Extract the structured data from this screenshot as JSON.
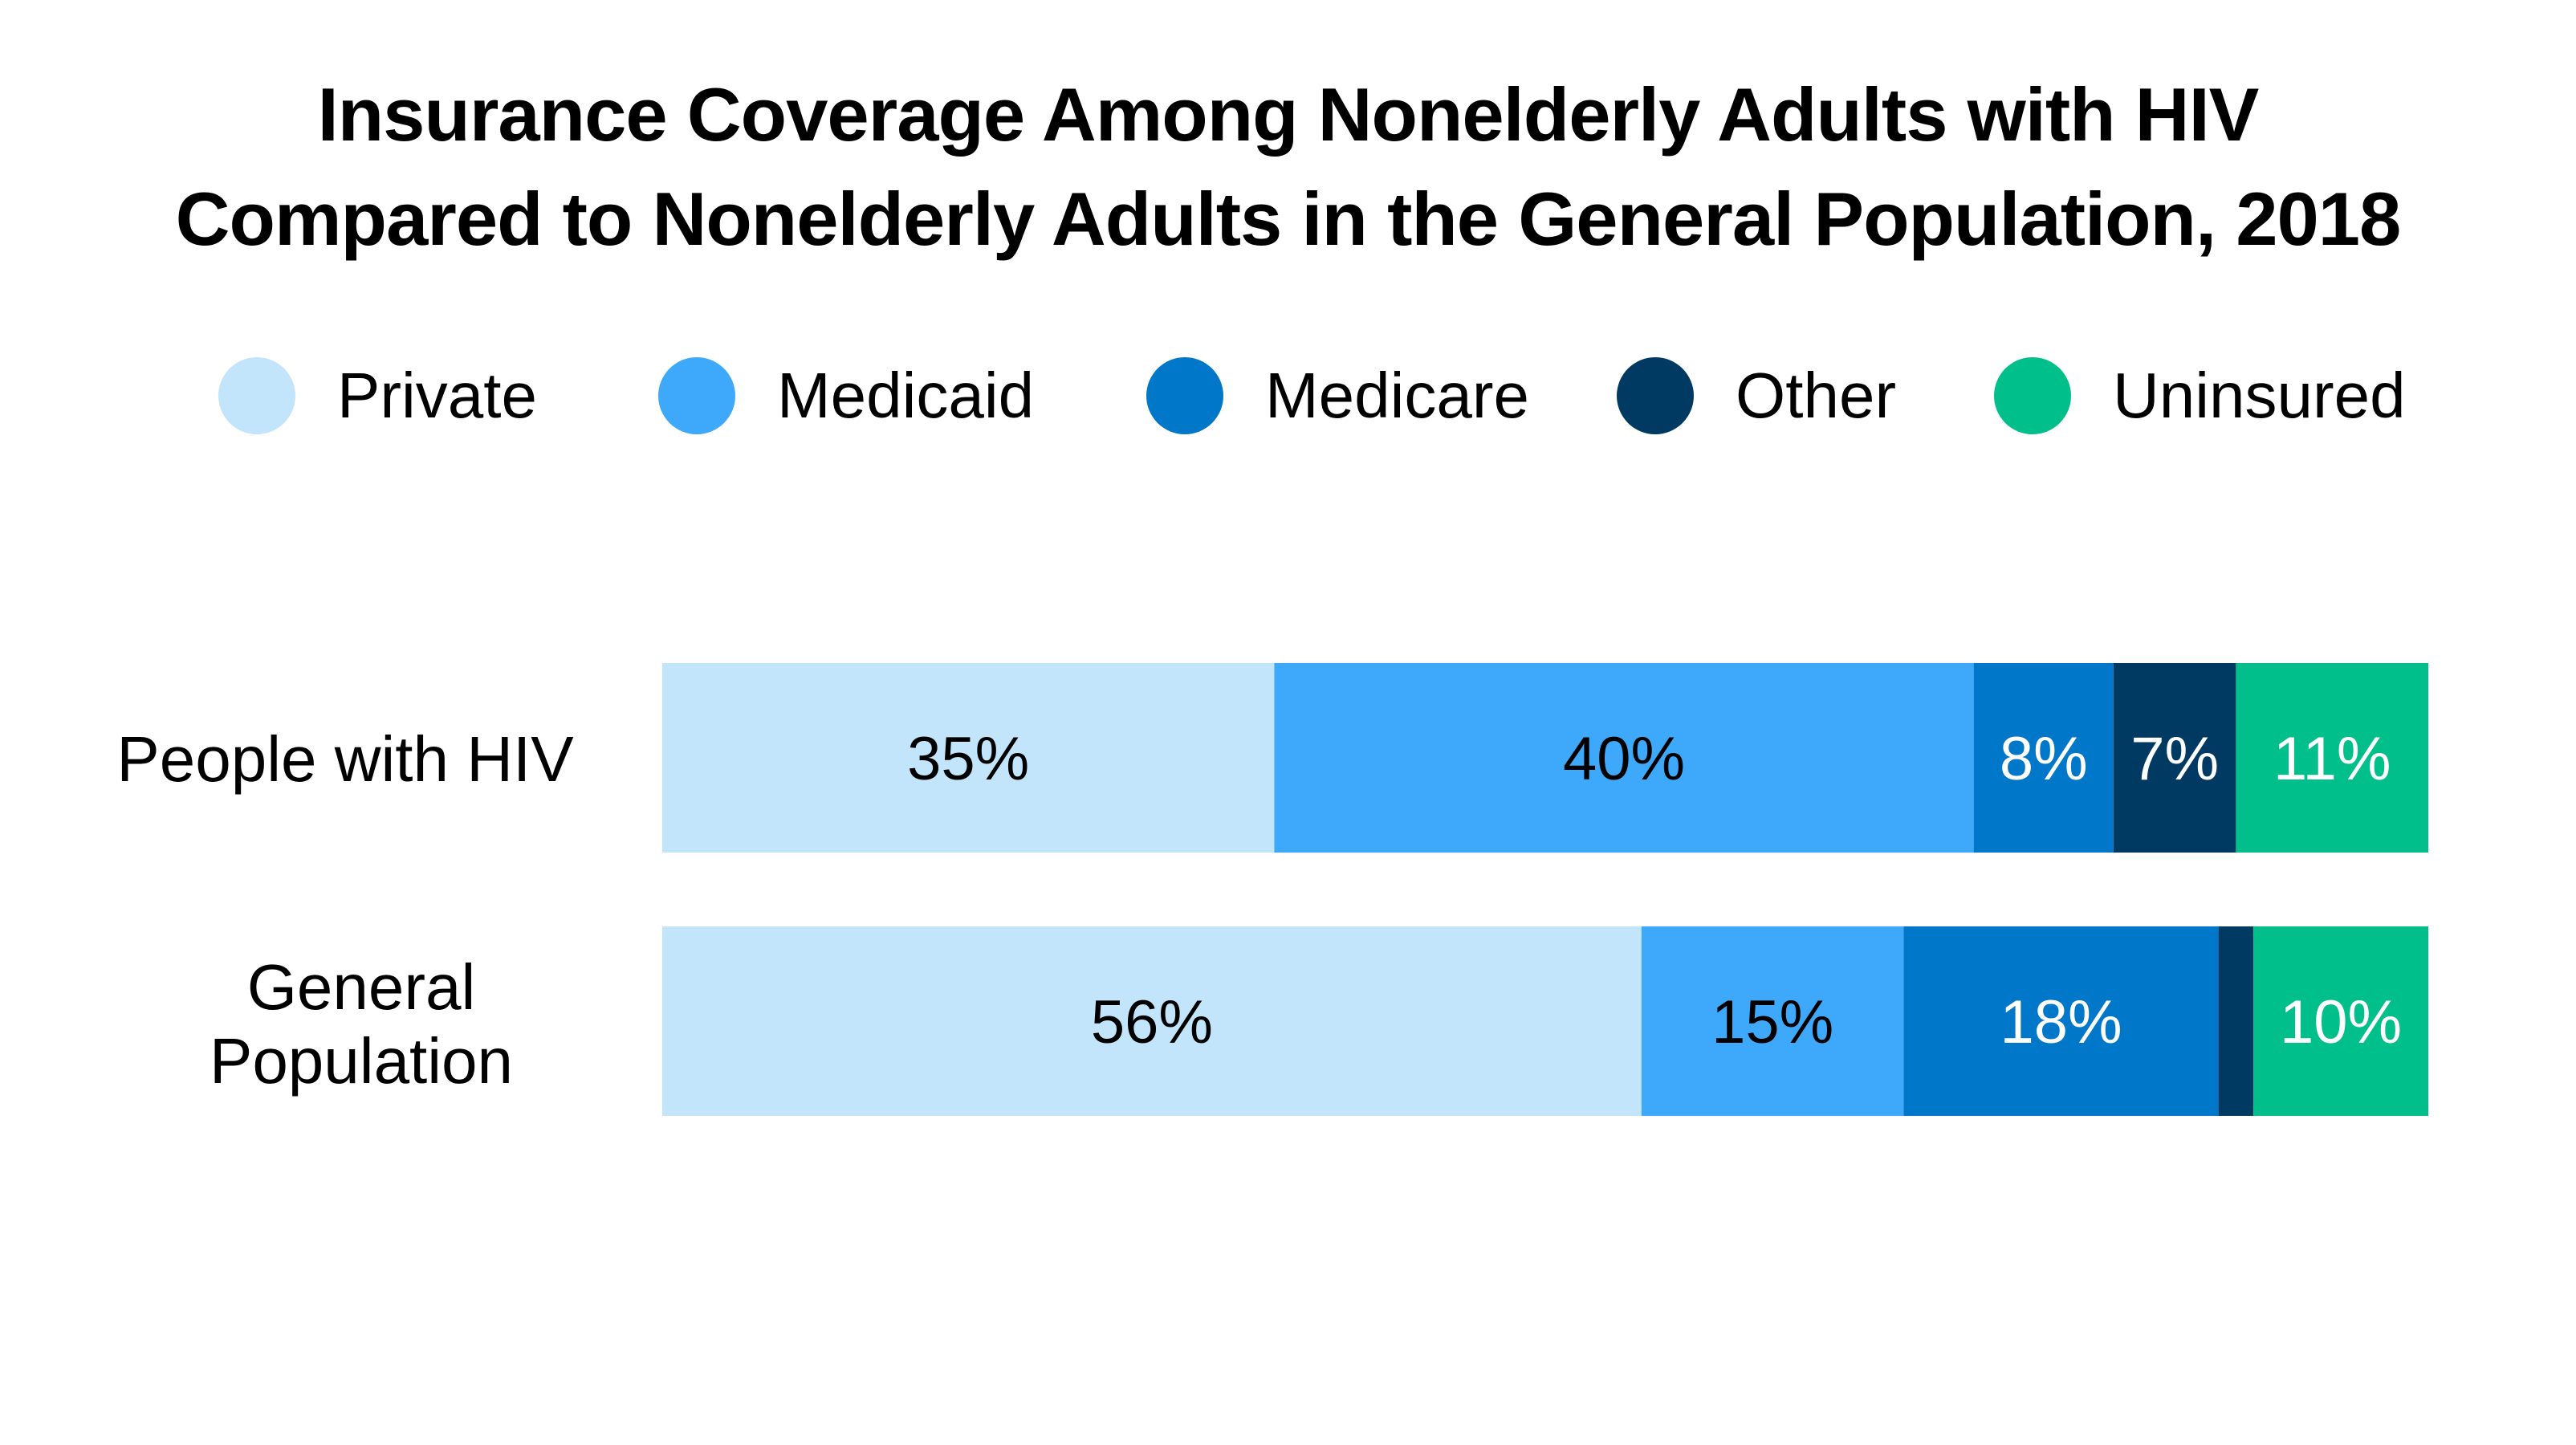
{
  "chart_data": {
    "type": "bar",
    "orientation": "horizontal",
    "stacked": true,
    "title": "Insurance Coverage Among Nonelderly Adults with HIV Compared to Nonelderly Adults in the General Population, 2018",
    "title_lines": [
      "Insurance Coverage Among Nonelderly Adults with HIV",
      "Compared to Nonelderly Adults in the General Population, 2018"
    ],
    "categories": [
      "People with HIV",
      "General Population"
    ],
    "category_label_lines": [
      [
        "People with HIV"
      ],
      [
        "General",
        "Population"
      ]
    ],
    "unit": "%",
    "xlim": [
      0,
      100
    ],
    "grid": false,
    "legend_position": "top",
    "series": [
      {
        "name": "Private",
        "color": "#c2e5fb",
        "label_color": "#000000",
        "values": [
          35,
          56
        ],
        "labels": [
          "35%",
          "56%"
        ]
      },
      {
        "name": "Medicaid",
        "color": "#3ea9fa",
        "label_color": "#000000",
        "values": [
          40,
          15
        ],
        "labels": [
          "40%",
          "15%"
        ]
      },
      {
        "name": "Medicare",
        "color": "#0077c8",
        "label_color": "#ffffff",
        "values": [
          8,
          18
        ],
        "labels": [
          "8%",
          "18%"
        ]
      },
      {
        "name": "Other",
        "color": "#003a63",
        "label_color": "#ffffff",
        "values": [
          7,
          2
        ],
        "labels": [
          "7%",
          ""
        ]
      },
      {
        "name": "Uninsured",
        "color": "#00bf8a",
        "label_color": "#ffffff",
        "values": [
          11,
          10
        ],
        "labels": [
          "11%",
          "10%"
        ]
      }
    ]
  }
}
